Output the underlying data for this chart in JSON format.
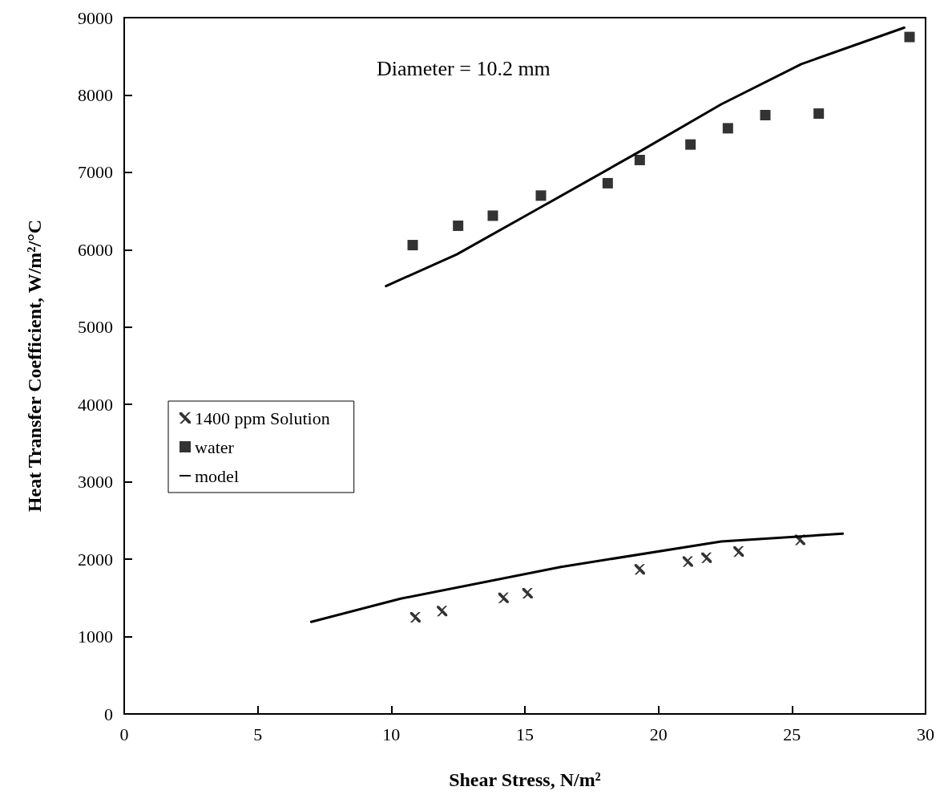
{
  "chart_data": {
    "type": "scatter",
    "xlabel": "Shear Stress, N/m²",
    "ylabel": "Heat Transfer Coefficient, W/m²/°C",
    "annotations": [
      "Diameter = 10.2 mm"
    ],
    "xlim": [
      0,
      30
    ],
    "xticks": [
      0,
      5,
      10,
      15,
      20,
      25,
      30
    ],
    "ylim": [
      0,
      9000
    ],
    "yticks": [
      0,
      1000,
      2000,
      3000,
      4000,
      5000,
      6000,
      7000,
      8000,
      9000
    ],
    "grid": false,
    "legend": "left",
    "series": [
      {
        "name": "1400 ppm Solution",
        "marker": "cross",
        "color": "#000000",
        "x": [
          10.9,
          11.9,
          14.2,
          15.1,
          19.3,
          21.1,
          21.8,
          23.0,
          25.3
        ],
        "values": [
          1250,
          1330,
          1500,
          1560,
          1870,
          1970,
          2020,
          2100,
          2250
        ]
      },
      {
        "name": "water",
        "marker": "square",
        "color": "#000000",
        "x": [
          10.8,
          12.5,
          13.8,
          15.6,
          18.1,
          19.3,
          21.2,
          22.6,
          24.0,
          26.0,
          29.4
        ],
        "values": [
          6060,
          6310,
          6440,
          6700,
          6860,
          7160,
          7360,
          7570,
          7740,
          7760,
          8750
        ]
      },
      {
        "name": "model",
        "type": "line",
        "marker": "none",
        "line_style": "solid",
        "color": "#000000",
        "x": [
          9.8,
          12.45,
          15.6,
          19.35,
          22.35,
          25.35,
          29.2
        ],
        "values": [
          5530,
          5940,
          6550,
          7280,
          7880,
          8400,
          8870
        ]
      },
      {
        "type": "line",
        "marker": "none",
        "line_style": "solid",
        "color": "#000000",
        "x": [
          7.0,
          10.35,
          16.35,
          22.35,
          26.9
        ],
        "values": [
          1190,
          1490,
          1900,
          2230,
          2330
        ]
      }
    ]
  }
}
